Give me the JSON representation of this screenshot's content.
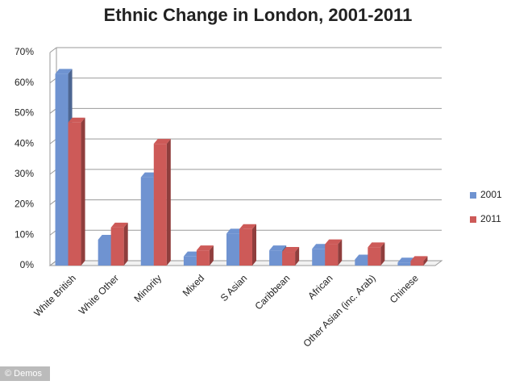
{
  "chart_data": {
    "type": "bar",
    "title": "Ethnic Change in London, 2001-2011",
    "categories": [
      "White British",
      "White Other",
      "Minority",
      "Mixed",
      "S Asian",
      "Caribbean",
      "African",
      "Other Asian (inc. Arab)",
      "Chinese"
    ],
    "series": [
      {
        "name": "2001",
        "color": "#6f93d1",
        "values": [
          63,
          8.5,
          29,
          3,
          10.5,
          5,
          5.5,
          2,
          1
        ]
      },
      {
        "name": "2011",
        "color": "#cd5a58",
        "values": [
          47,
          12.5,
          40,
          5,
          12,
          4.5,
          7,
          6,
          1.5
        ]
      }
    ],
    "ylim": [
      0,
      70
    ],
    "yticks": [
      {
        "value": 0,
        "label": "0%"
      },
      {
        "value": 10,
        "label": "10%"
      },
      {
        "value": 20,
        "label": "20%"
      },
      {
        "value": 30,
        "label": "30%"
      },
      {
        "value": 40,
        "label": "40%"
      },
      {
        "value": 50,
        "label": "50%"
      },
      {
        "value": 60,
        "label": "60%"
      },
      {
        "value": 70,
        "label": "70%"
      }
    ],
    "grid": true,
    "legend": "right",
    "credit": "© Demos"
  }
}
